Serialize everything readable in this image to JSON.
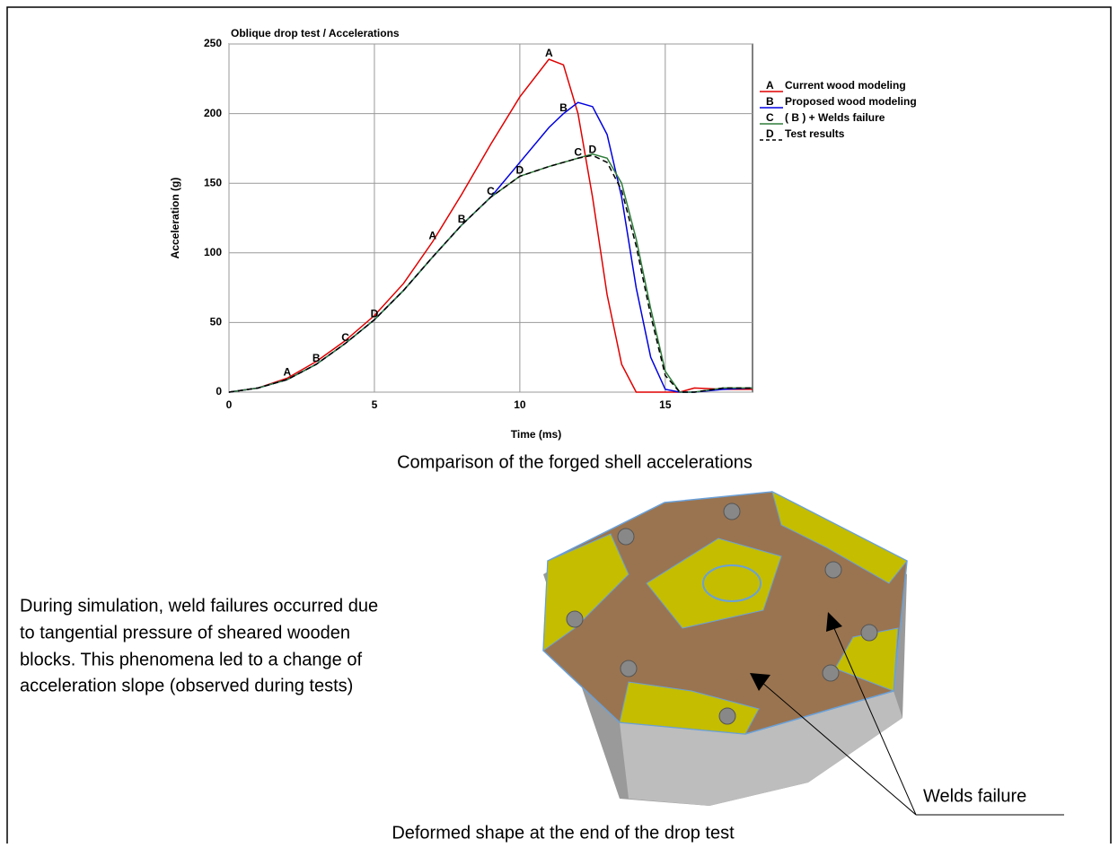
{
  "chart_data": {
    "type": "line",
    "title": "Oblique drop test / Accelerations",
    "x_label": "Time (ms)",
    "y_label": "Acceleration (g)",
    "x": [
      0,
      1,
      2,
      3,
      4,
      5,
      6,
      7,
      8,
      9,
      10,
      11,
      11.5,
      12,
      12.5,
      13,
      13.5,
      14,
      14.5,
      15,
      15.5,
      16,
      17,
      18
    ],
    "series": [
      {
        "name": "Current wood modeling",
        "label": "A",
        "color": "#e00000",
        "dash": false,
        "values": [
          0,
          3,
          10,
          22,
          37,
          55,
          78,
          108,
          142,
          178,
          212,
          239,
          235,
          200,
          140,
          70,
          20,
          0,
          0,
          0,
          0,
          3,
          2,
          2
        ]
      },
      {
        "name": "Proposed wood modeling",
        "label": "B",
        "color": "#0000e0",
        "dash": false,
        "values": [
          0,
          3,
          9,
          20,
          35,
          52,
          73,
          97,
          120,
          140,
          165,
          190,
          200,
          208,
          205,
          185,
          140,
          75,
          25,
          2,
          0,
          0,
          2,
          3
        ]
      },
      {
        "name": "( B ) + Welds failure",
        "label": "C",
        "color": "#2e7d3a",
        "dash": false,
        "values": [
          0,
          3,
          9,
          20,
          35,
          52,
          73,
          97,
          120,
          140,
          155,
          162,
          165,
          168,
          171,
          168,
          150,
          110,
          60,
          15,
          0,
          0,
          3,
          3
        ]
      },
      {
        "name": "Test results",
        "label": "D",
        "color": "#000000",
        "dash": true,
        "values": [
          0,
          3,
          9,
          20,
          35,
          52,
          73,
          97,
          120,
          140,
          155,
          162,
          165,
          168,
          170,
          165,
          145,
          105,
          55,
          12,
          0,
          0,
          3,
          3
        ]
      }
    ],
    "xlim": [
      0,
      18
    ],
    "ylim": [
      0,
      250
    ],
    "xticks": [
      0,
      5,
      10,
      15
    ],
    "yticks": [
      0,
      50,
      100,
      150,
      200,
      250
    ],
    "grid": true
  },
  "caption_chart": "Comparison of the forged shell accelerations",
  "paragraph": [
    "During simulation, weld failures occurred due",
    "to tangential pressure of sheared wooden",
    "blocks. This phenomena led to a change of",
    "acceleration slope (observed during tests)"
  ],
  "callout": "Welds failure",
  "caption_image": "Deformed shape at the end of the drop test"
}
